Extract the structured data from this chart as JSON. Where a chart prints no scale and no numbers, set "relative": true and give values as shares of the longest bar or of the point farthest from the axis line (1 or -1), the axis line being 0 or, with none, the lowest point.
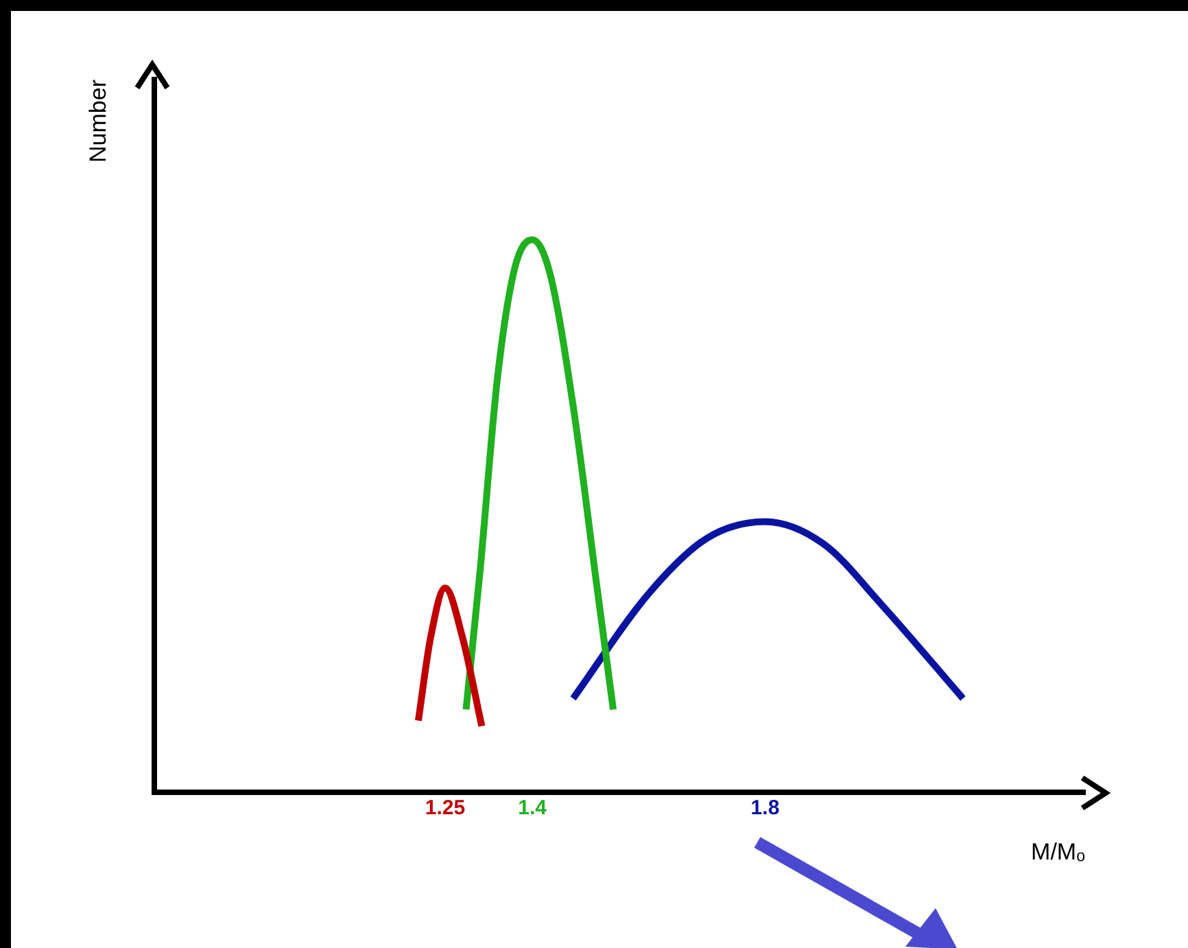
{
  "chart_data": {
    "type": "line",
    "relative": true,
    "xlabel": "M/Mₒ",
    "ylabel": "Number",
    "xlim": [
      0.75,
      2.35
    ],
    "xticks": [
      1.25,
      1.4,
      1.8
    ],
    "grid": false,
    "legend": false,
    "marker": "none",
    "line_style": "solid",
    "series": [
      {
        "color": "#c00000",
        "x": [
          1.204,
          1.225,
          1.25,
          1.28,
          1.313
        ],
        "values": [
          0.13,
          0.28,
          0.37,
          0.28,
          0.12
        ]
      },
      {
        "color": "#20b020",
        "x": [
          1.286,
          1.31,
          1.34,
          1.37,
          1.4,
          1.43,
          1.47,
          1.51,
          1.539
        ],
        "values": [
          0.15,
          0.4,
          0.75,
          0.95,
          1,
          0.94,
          0.7,
          0.38,
          0.15
        ]
      },
      {
        "color": "#0a14a0",
        "x": [
          1.47,
          1.6,
          1.7,
          1.8,
          1.9,
          2.0,
          2.14
        ],
        "values": [
          0.17,
          0.36,
          0.46,
          0.49,
          0.45,
          0.34,
          0.17
        ]
      }
    ]
  }
}
